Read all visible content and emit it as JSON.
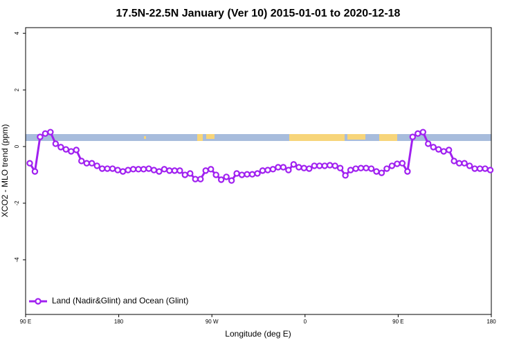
{
  "chart_data": {
    "type": "line",
    "title": "17.5N-22.5N January (Ver 10)   2015-01-01 to 2020-12-18",
    "xlabel": "Longitude (deg E)",
    "ylabel": "XCO2 - MLO trend (ppm)",
    "xlim": [
      90,
      540
    ],
    "xticks": [
      {
        "value": 90,
        "label": "90 E"
      },
      180,
      {
        "value": 270,
        "label": "90 W"
      },
      {
        "value": 360,
        "label": "0"
      },
      {
        "value": 450,
        "label": "90 E"
      },
      {
        "value": 540,
        "label": "180"
      }
    ],
    "ylim": [
      -5.93,
      4.2
    ],
    "yticks": [
      -4,
      -2,
      0,
      2,
      4
    ],
    "legend": "bottom-left",
    "x": [
      94,
      99,
      104,
      109,
      114,
      119,
      124,
      129,
      134,
      139,
      144,
      149,
      154,
      159,
      164,
      169,
      174,
      179,
      184,
      189,
      194,
      199,
      204,
      209,
      214,
      219,
      224,
      229,
      234,
      239,
      244,
      249,
      254,
      259,
      264,
      269,
      274,
      279,
      284,
      289,
      294,
      299,
      304,
      309,
      314,
      319,
      324,
      329,
      334,
      339,
      344,
      349,
      354,
      359,
      364,
      369,
      374,
      379,
      384,
      389,
      394,
      399,
      404,
      409,
      414,
      419,
      424,
      429,
      434,
      439,
      444,
      449,
      454,
      459,
      464,
      469,
      474,
      479,
      484,
      489,
      494,
      499,
      504,
      509,
      514,
      519,
      524,
      529,
      534,
      539
    ],
    "series": [
      {
        "name": "Land (Nadir&Glint) and Ocean (Glint)",
        "color": "#a020f0",
        "values": [
          -0.59,
          -0.88,
          0.34,
          0.46,
          0.51,
          0.1,
          -0.02,
          -0.1,
          -0.17,
          -0.12,
          -0.51,
          -0.59,
          -0.59,
          -0.68,
          -0.78,
          -0.78,
          -0.78,
          -0.83,
          -0.88,
          -0.83,
          -0.8,
          -0.8,
          -0.8,
          -0.78,
          -0.83,
          -0.88,
          -0.8,
          -0.85,
          -0.85,
          -0.85,
          -1.0,
          -0.95,
          -1.15,
          -1.15,
          -0.85,
          -0.8,
          -1.0,
          -1.17,
          -1.07,
          -1.2,
          -0.95,
          -1.0,
          -0.98,
          -0.98,
          -0.95,
          -0.85,
          -0.83,
          -0.8,
          -0.73,
          -0.73,
          -0.83,
          -0.63,
          -0.73,
          -0.76,
          -0.78,
          -0.68,
          -0.68,
          -0.68,
          -0.66,
          -0.68,
          -0.76,
          -1.02,
          -0.83,
          -0.78,
          -0.76,
          -0.76,
          -0.78,
          -0.88,
          -0.93,
          -0.78,
          -0.68,
          -0.61,
          -0.59,
          -0.88,
          0.34,
          0.46,
          0.51,
          0.1,
          -0.02,
          -0.1,
          -0.17,
          -0.12,
          -0.51,
          -0.59,
          -0.59,
          -0.68,
          -0.78,
          -0.78,
          -0.78,
          -0.83
        ]
      }
    ]
  }
}
